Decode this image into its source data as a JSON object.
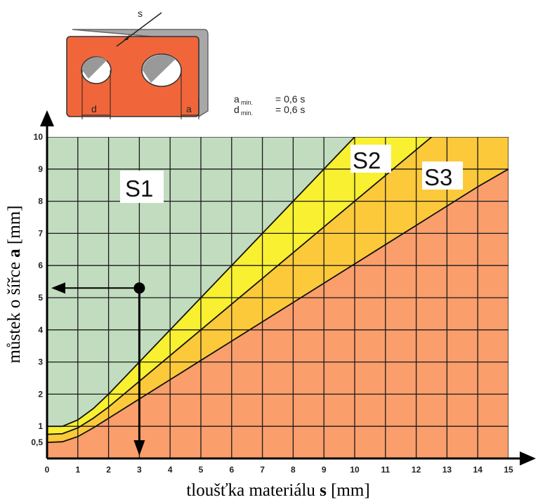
{
  "chart_data": {
    "type": "area",
    "xlabel": "tloušťka materiálu",
    "xlabel_bold": "s",
    "xlabel_unit": "[mm]",
    "ylabel": "můstek o šířce",
    "ylabel_bold": "a",
    "ylabel_unit": "[mm]",
    "xlim": [
      0,
      15
    ],
    "ylim": [
      0,
      10
    ],
    "x_ticks": [
      "0",
      "1",
      "2",
      "3",
      "4",
      "5",
      "6",
      "7",
      "8",
      "9",
      "10",
      "11",
      "12",
      "13",
      "14",
      "15"
    ],
    "y_ticks": [
      {
        "value": 0.5,
        "label": "0,5"
      },
      {
        "value": 1,
        "label": "1"
      },
      {
        "value": 2,
        "label": "2"
      },
      {
        "value": 3,
        "label": "3"
      },
      {
        "value": 4,
        "label": "4"
      },
      {
        "value": 5,
        "label": "5"
      },
      {
        "value": 6,
        "label": "6"
      },
      {
        "value": 7,
        "label": "7"
      },
      {
        "value": 8,
        "label": "8"
      },
      {
        "value": 9,
        "label": "9"
      },
      {
        "value": 10,
        "label": "10"
      }
    ],
    "grid": true,
    "boundaries": [
      {
        "points": [
          [
            0,
            1.0
          ],
          [
            0.5,
            1.0
          ],
          [
            1,
            1.2
          ],
          [
            1.5,
            1.55
          ],
          [
            2,
            2.0
          ],
          [
            3,
            3.0
          ],
          [
            4,
            4.0
          ],
          [
            5,
            5.0
          ],
          [
            6,
            6.0
          ],
          [
            7,
            7.0
          ],
          [
            8,
            8.0
          ],
          [
            9,
            9.0
          ],
          [
            10,
            10.0
          ]
        ]
      },
      {
        "points": [
          [
            0,
            0.75
          ],
          [
            0.5,
            0.77
          ],
          [
            1,
            0.95
          ],
          [
            1.5,
            1.25
          ],
          [
            2,
            1.6
          ],
          [
            3,
            2.4
          ],
          [
            4,
            3.2
          ],
          [
            5,
            4.0
          ],
          [
            6,
            4.8
          ],
          [
            7,
            5.6
          ],
          [
            8,
            6.4
          ],
          [
            9,
            7.2
          ],
          [
            10,
            8.0
          ],
          [
            11,
            8.8
          ],
          [
            12,
            9.6
          ],
          [
            12.5,
            10.0
          ]
        ]
      },
      {
        "points": [
          [
            0,
            0.5
          ],
          [
            0.5,
            0.52
          ],
          [
            1,
            0.68
          ],
          [
            1.5,
            0.95
          ],
          [
            2,
            1.25
          ],
          [
            3,
            1.85
          ],
          [
            4,
            2.45
          ],
          [
            5,
            3.05
          ],
          [
            6,
            3.65
          ],
          [
            7,
            4.25
          ],
          [
            8,
            4.85
          ],
          [
            9,
            5.45
          ],
          [
            10,
            6.05
          ],
          [
            11,
            6.65
          ],
          [
            12,
            7.25
          ],
          [
            13,
            7.85
          ],
          [
            14,
            8.45
          ],
          [
            15,
            9.0
          ]
        ]
      }
    ],
    "regions": [
      {
        "name": "S1",
        "color": "#c2dcc0"
      },
      {
        "name": "S2",
        "color": "#f8f030"
      },
      {
        "name": "S3",
        "color": "#fcc93a"
      },
      {
        "name": "",
        "color": "#fa9e6c"
      }
    ],
    "example": {
      "x": 3,
      "y": 5.3
    }
  },
  "formulas": [
    {
      "symbol": "a",
      "sub": "min.",
      "text": "= 0,6 s"
    },
    {
      "symbol": "d",
      "sub": "min.",
      "text": "= 0,6 s"
    }
  ],
  "diagram": {
    "thickness_label": "s",
    "hole_label": "d",
    "bridge_label": "a",
    "plate_color": "#f0663a"
  }
}
